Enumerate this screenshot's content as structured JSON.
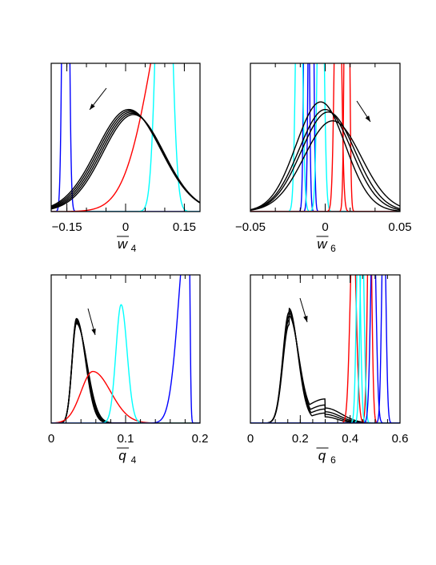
{
  "chart_data": [
    {
      "type": "line",
      "xlabel": "w̄₄",
      "xlabel_main": "w",
      "xlabel_sub": "4",
      "xlim": [
        -0.19,
        0.19
      ],
      "xticks_labeled": [
        -0.15,
        0,
        0.15
      ],
      "xtick_labels": [
        "−0.15",
        "0",
        "0.15"
      ],
      "ylabel": "",
      "annotation": "arrow pointing down-left",
      "series": [
        {
          "color": "#0000ff",
          "curves": [
            {
              "mu": -0.153,
              "sigma": 0.006,
              "amp": 6
            }
          ]
        },
        {
          "color": "#00ffff",
          "curves": [
            {
              "mu": 0.098,
              "sigma": 0.016,
              "amp": 3.5
            }
          ]
        },
        {
          "color": "#ff0000",
          "curves": [
            {
              "mu": 0.148,
              "sigma": 0.075,
              "amp": 2.2
            }
          ]
        },
        {
          "color": "#000000",
          "curves": [
            {
              "mu": 0.008,
              "sigma": 0.082,
              "amp": 0.81
            },
            {
              "mu": 0.011,
              "sigma": 0.081,
              "amp": 0.8
            },
            {
              "mu": 0.014,
              "sigma": 0.08,
              "amp": 0.79
            },
            {
              "mu": 0.017,
              "sigma": 0.079,
              "amp": 0.78
            },
            {
              "mu": 0.02,
              "sigma": 0.078,
              "amp": 0.77
            }
          ]
        }
      ]
    },
    {
      "type": "line",
      "xlabel": "w̄₆",
      "xlabel_main": "w",
      "xlabel_sub": "6",
      "xlim": [
        -0.05,
        0.05
      ],
      "xticks_labeled": [
        -0.05,
        0,
        0.05
      ],
      "xtick_labels": [
        "−0.05",
        "0",
        "0.05"
      ],
      "ylabel": "",
      "annotation": "arrow pointing up-left",
      "series": [
        {
          "color": "#0000ff",
          "curves": [
            {
              "mu": -0.0125,
              "sigma": 0.0012,
              "amp": 5
            },
            {
              "mu": -0.0095,
              "sigma": 0.0012,
              "amp": 5
            }
          ]
        },
        {
          "color": "#00ffff",
          "curves": [
            {
              "mu": -0.0175,
              "sigma": 0.0018,
              "amp": 3
            },
            {
              "mu": -0.003,
              "sigma": 0.0018,
              "amp": 3
            }
          ]
        },
        {
          "color": "#ff0000",
          "curves": [
            {
              "mu": 0.0085,
              "sigma": 0.0018,
              "amp": 3.2
            },
            {
              "mu": 0.0145,
              "sigma": 0.0012,
              "amp": 5
            }
          ]
        },
        {
          "color": "#000000",
          "curves": [
            {
              "mu": -0.003,
              "sigma": 0.0165,
              "amp": 0.87
            },
            {
              "mu": 0.0,
              "sigma": 0.0175,
              "amp": 0.81
            },
            {
              "mu": 0.002,
              "sigma": 0.018,
              "amp": 0.79
            },
            {
              "mu": 0.005,
              "sigma": 0.019,
              "amp": 0.72
            }
          ]
        }
      ]
    },
    {
      "type": "line",
      "xlabel": "q̄₄",
      "xlabel_main": "q",
      "xlabel_sub": "4",
      "xlim": [
        0,
        0.2
      ],
      "xticks_labeled": [
        0,
        0.1,
        0.2
      ],
      "xtick_labels": [
        "0",
        "0.1",
        "0.2"
      ],
      "ylabel": "",
      "annotation": "arrow pointing down",
      "series": [
        {
          "color": "#000000",
          "curves": [
            {
              "mu": 0.034,
              "sigmaL": 0.006,
              "sigmaR": 0.012,
              "amp": 0.83
            },
            {
              "mu": 0.034,
              "sigmaL": 0.006,
              "sigmaR": 0.0125,
              "amp": 0.82
            },
            {
              "mu": 0.034,
              "sigmaL": 0.006,
              "sigmaR": 0.013,
              "amp": 0.81
            },
            {
              "mu": 0.034,
              "sigmaL": 0.006,
              "sigmaR": 0.0135,
              "amp": 0.8
            },
            {
              "mu": 0.034,
              "sigmaL": 0.006,
              "sigmaR": 0.014,
              "amp": 0.79
            }
          ]
        },
        {
          "color": "#ff0000",
          "curves": [
            {
              "mu": 0.056,
              "sigmaL": 0.016,
              "sigmaR": 0.024,
              "amp": 0.41
            }
          ]
        },
        {
          "color": "#00ffff",
          "curves": [
            {
              "mu": 0.094,
              "sigmaL": 0.007,
              "sigmaR": 0.008,
              "amp": 0.94
            }
          ]
        },
        {
          "color": "#0000ff",
          "curves": [
            {
              "mu": 0.185,
              "sigmaL": 0.013,
              "sigmaR": 0.0015,
              "amp": 1.7
            }
          ]
        }
      ]
    },
    {
      "type": "line",
      "xlabel": "q̄₆",
      "xlabel_main": "q",
      "xlabel_sub": "6",
      "xlim": [
        0,
        0.6
      ],
      "xticks_labeled": [
        0,
        0.2,
        0.4,
        0.6
      ],
      "xtick_labels": [
        "0",
        "0.2",
        "0.4",
        "0.6"
      ],
      "ylabel": "",
      "annotation": "arrow pointing down",
      "series": [
        {
          "color": "#000000",
          "curves": [
            {
              "mu": 0.155,
              "sigmaL": 0.025,
              "sigmaR": 0.035,
              "amp": 0.88,
              "tailAmp": 0.05,
              "tailMu": 0.3,
              "tailSigma": 0.05
            },
            {
              "mu": 0.155,
              "sigmaL": 0.025,
              "sigmaR": 0.036,
              "amp": 0.85,
              "tailAmp": 0.07,
              "tailMu": 0.3,
              "tailSigma": 0.055
            },
            {
              "mu": 0.155,
              "sigmaL": 0.025,
              "sigmaR": 0.037,
              "amp": 0.82,
              "tailAmp": 0.09,
              "tailMu": 0.3,
              "tailSigma": 0.06
            },
            {
              "mu": 0.155,
              "sigmaL": 0.025,
              "sigmaR": 0.038,
              "amp": 0.78,
              "tailAmp": 0.12,
              "tailMu": 0.3,
              "tailSigma": 0.065
            }
          ]
        },
        {
          "color": "#ff0000",
          "curves": [
            {
              "mu": 0.412,
              "sigma": 0.012,
              "amp": 1.6
            },
            {
              "mu": 0.478,
              "sigma": 0.008,
              "amp": 2.0
            }
          ]
        },
        {
          "color": "#00ffff",
          "curves": [
            {
              "mu": 0.433,
              "sigma": 0.008,
              "amp": 1.6
            },
            {
              "mu": 0.448,
              "sigma": 0.008,
              "amp": 1.6
            }
          ]
        },
        {
          "color": "#0000ff",
          "curves": [
            {
              "mu": 0.493,
              "sigma": 0.01,
              "amp": 1.8
            },
            {
              "mu": 0.535,
              "sigma": 0.008,
              "amp": 1.8
            }
          ]
        }
      ]
    }
  ]
}
